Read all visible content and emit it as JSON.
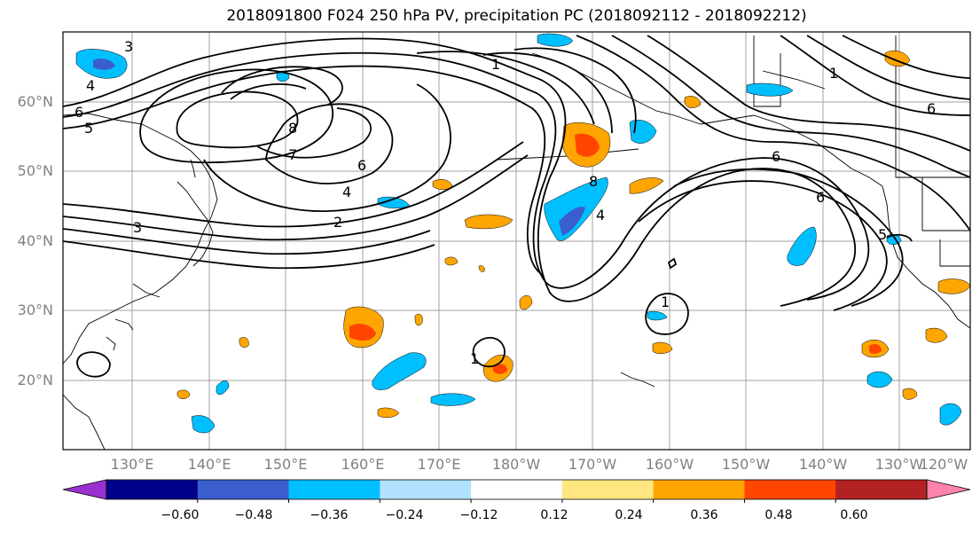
{
  "title": "2018091800 F024 250 hPa PV, precipitation PC (2018092112 - 2018092212)",
  "lat_labels": [
    "60°N",
    "50°N",
    "40°N",
    "30°N",
    "20°N"
  ],
  "lon_labels": [
    "130°E",
    "140°E",
    "150°E",
    "160°E",
    "170°E",
    "180°W",
    "170°W",
    "160°W",
    "150°W",
    "140°W",
    "130°W",
    "120°W"
  ],
  "pv_contour_labels": [
    "3",
    "4",
    "5",
    "6",
    "7",
    "8",
    "2",
    "1"
  ],
  "colorbar": {
    "ticks": [
      "−0.60",
      "−0.48",
      "−0.36",
      "−0.24",
      "−0.12",
      "0.12",
      "0.24",
      "0.36",
      "0.48",
      "0.60"
    ],
    "colors": [
      "#9b30d0",
      "#00008b",
      "#3a5fcd",
      "#00bfff",
      "#b0e2ff",
      "#ffffff",
      "#ffe680",
      "#ffa500",
      "#ff4500",
      "#b22222",
      "#ff82ab"
    ],
    "extend": "both"
  }
}
